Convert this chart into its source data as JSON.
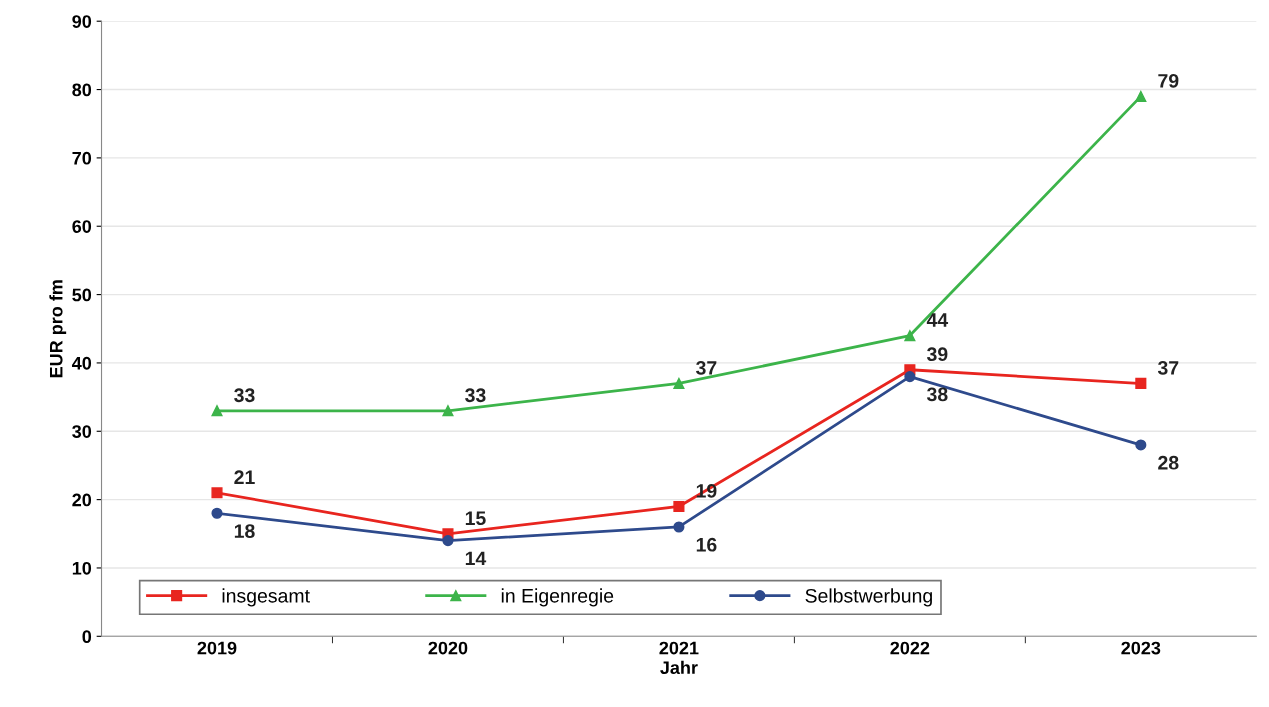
{
  "chart_data": {
    "type": "line",
    "xlabel": "Jahr",
    "ylabel": "EUR pro fm",
    "categories": [
      "2019",
      "2020",
      "2021",
      "2022",
      "2023"
    ],
    "series": [
      {
        "name": "insgesamt",
        "color": "#e8251f",
        "marker": "square",
        "values": [
          21,
          15,
          19,
          39,
          37
        ]
      },
      {
        "name": "in Eigenregie",
        "color": "#3cb44a",
        "marker": "triangle",
        "values": [
          33,
          33,
          37,
          44,
          79
        ]
      },
      {
        "name": "Selbstwerbung",
        "color": "#2e4a8c",
        "marker": "circle",
        "values": [
          18,
          14,
          16,
          38,
          28
        ]
      }
    ],
    "ylim": [
      0,
      90
    ],
    "yticks": [
      0,
      10,
      20,
      30,
      40,
      50,
      60,
      70,
      80,
      90
    ],
    "grid": "y",
    "legend": "bottom",
    "data_labels": true,
    "line_style": "solid"
  }
}
